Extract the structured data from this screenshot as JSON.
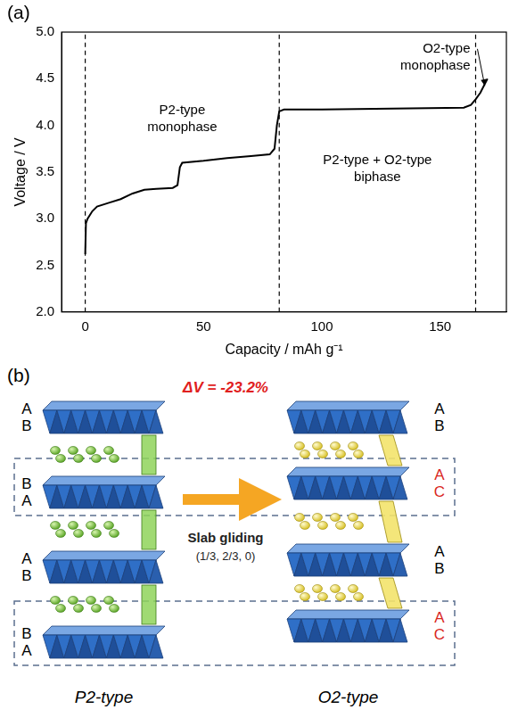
{
  "chart_data": {
    "type": "line",
    "panel_label": "(a)",
    "x_label": "Capacity / mAh g⁻¹",
    "y_label": "Voltage / V",
    "x": [
      0,
      0.3,
      1,
      3,
      5,
      10,
      15,
      20,
      25,
      30,
      37,
      39,
      40,
      41,
      50,
      60,
      70,
      78,
      80,
      81,
      82,
      84,
      100,
      130,
      160,
      163,
      165,
      167,
      170
    ],
    "values": [
      2.62,
      2.95,
      3.0,
      3.08,
      3.13,
      3.17,
      3.21,
      3.27,
      3.31,
      3.32,
      3.33,
      3.36,
      3.55,
      3.6,
      3.62,
      3.65,
      3.67,
      3.69,
      3.75,
      4.0,
      4.15,
      4.17,
      4.17,
      4.18,
      4.19,
      4.22,
      4.28,
      4.35,
      4.5
    ],
    "color": "#000000",
    "xlim": [
      -10,
      178
    ],
    "xticks": [
      0,
      50,
      100,
      150
    ],
    "ylim": [
      2,
      5
    ],
    "yticks": [
      {
        "value": 2,
        "label": "2.0"
      },
      {
        "value": 2.5,
        "label": "2.5"
      },
      {
        "value": 3,
        "label": "3.0"
      },
      {
        "value": 3.5,
        "label": "3.5"
      },
      {
        "value": 4,
        "label": "4.0"
      },
      {
        "value": 4.5,
        "label": "4.5"
      },
      {
        "value": 5,
        "label": "5.0"
      }
    ],
    "grid": false,
    "boundaries": [
      0,
      82,
      165
    ],
    "annotations": [
      {
        "text": [
          "P2-type",
          "monophase"
        ]
      },
      {
        "text": [
          "P2-type + O2-type",
          "biphase"
        ]
      },
      {
        "text": [
          "O2-type",
          "monophase"
        ]
      }
    ]
  },
  "diagram": {
    "panel_label": "(b)",
    "volume_change": {
      "text": "ΔV = -23.2%",
      "color": "#e02020"
    },
    "transition": "Slab gliding",
    "vector": "(1/3, 2/3, 0)",
    "structures": [
      {
        "name": "P2-type",
        "layers": [
          {
            "letters": [
              "A",
              "B"
            ],
            "color": "#000000"
          },
          {
            "letters": [
              "B",
              "A"
            ],
            "color": "#000000"
          },
          {
            "letters": [
              "A",
              "B"
            ],
            "color": "#000000"
          },
          {
            "letters": [
              "B",
              "A"
            ],
            "color": "#000000"
          }
        ]
      },
      {
        "name": "O2-type",
        "layers": [
          {
            "letters": [
              "A",
              "B"
            ],
            "color": "#000000"
          },
          {
            "letters": [
              "A",
              "C"
            ],
            "color": "#d9261c"
          },
          {
            "letters": [
              "A",
              "B"
            ],
            "color": "#000000"
          },
          {
            "letters": [
              "A",
              "C"
            ],
            "color": "#d9261c"
          }
        ]
      }
    ]
  }
}
